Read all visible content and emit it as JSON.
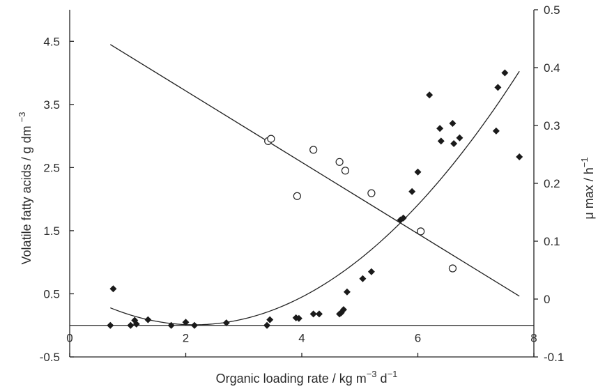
{
  "chart_data": {
    "type": "scatter",
    "title": "",
    "xlabel": {
      "base": "Organic loading rate / kg m",
      "sup1": "−3",
      "mid": " d",
      "sup2": "−1"
    },
    "ylabel_left": {
      "base": "Volatile fatty acids / g dm ",
      "sup": "−3"
    },
    "ylabel_right": {
      "base": "μ max / h",
      "sup": "−1"
    },
    "xlim": [
      0,
      8
    ],
    "ylim_left": [
      -0.5,
      5.0
    ],
    "ylim_right": [
      -0.1,
      0.5
    ],
    "x_ticks": [
      "0",
      "2",
      "4",
      "6",
      "8"
    ],
    "y_left_ticks": [
      "-0.5",
      "0.5",
      "1.5",
      "2.5",
      "3.5",
      "4.5"
    ],
    "y_right_ticks": [
      "-0.1",
      "0",
      "0.1",
      "0.2",
      "0.3",
      "0.4",
      "0.5"
    ],
    "grid": false,
    "series": [
      {
        "marker": "filled-diamond",
        "axis": "left",
        "points": [
          [
            0.7,
            0.0
          ],
          [
            0.75,
            0.58
          ],
          [
            1.05,
            0.0
          ],
          [
            1.12,
            0.08
          ],
          [
            1.15,
            0.02
          ],
          [
            1.35,
            0.09
          ],
          [
            1.75,
            0.0
          ],
          [
            2.0,
            0.05
          ],
          [
            2.15,
            0.0
          ],
          [
            2.7,
            0.04
          ],
          [
            3.4,
            0.0
          ],
          [
            3.45,
            0.09
          ],
          [
            3.9,
            0.12
          ],
          [
            3.95,
            0.11
          ],
          [
            4.2,
            0.18
          ],
          [
            4.3,
            0.18
          ],
          [
            4.65,
            0.18
          ],
          [
            4.68,
            0.2
          ],
          [
            4.72,
            0.25
          ],
          [
            4.78,
            0.53
          ],
          [
            5.05,
            0.74
          ],
          [
            5.2,
            0.85
          ],
          [
            5.7,
            1.67
          ],
          [
            5.75,
            1.7
          ],
          [
            5.9,
            2.12
          ],
          [
            6.0,
            2.43
          ],
          [
            6.2,
            3.65
          ],
          [
            6.38,
            3.12
          ],
          [
            6.4,
            2.92
          ],
          [
            6.6,
            3.2
          ],
          [
            6.62,
            2.88
          ],
          [
            6.72,
            2.97
          ],
          [
            7.35,
            3.08
          ],
          [
            7.38,
            3.77
          ],
          [
            7.5,
            4.0
          ],
          [
            7.75,
            2.67
          ]
        ]
      },
      {
        "marker": "open-circle",
        "axis": "right",
        "points": [
          [
            3.42,
            0.273
          ],
          [
            3.47,
            0.277
          ],
          [
            4.2,
            0.258
          ],
          [
            3.92,
            0.178
          ],
          [
            4.65,
            0.237
          ],
          [
            4.75,
            0.222
          ],
          [
            5.2,
            0.183
          ],
          [
            6.05,
            0.117
          ],
          [
            6.6,
            0.053
          ]
        ]
      }
    ],
    "fits": [
      {
        "kind": "linear",
        "axis": "right",
        "x_range": [
          0.7,
          7.75
        ],
        "y_at_start": 0.44,
        "y_at_end": 0.005
      },
      {
        "kind": "quadratic",
        "axis": "left",
        "x_range": [
          0.7,
          7.75
        ],
        "coeffs": [
          0.6,
          -0.55,
          0.128
        ]
      },
      {
        "kind": "horizontal",
        "axis": "left",
        "y": 0.0
      }
    ]
  }
}
